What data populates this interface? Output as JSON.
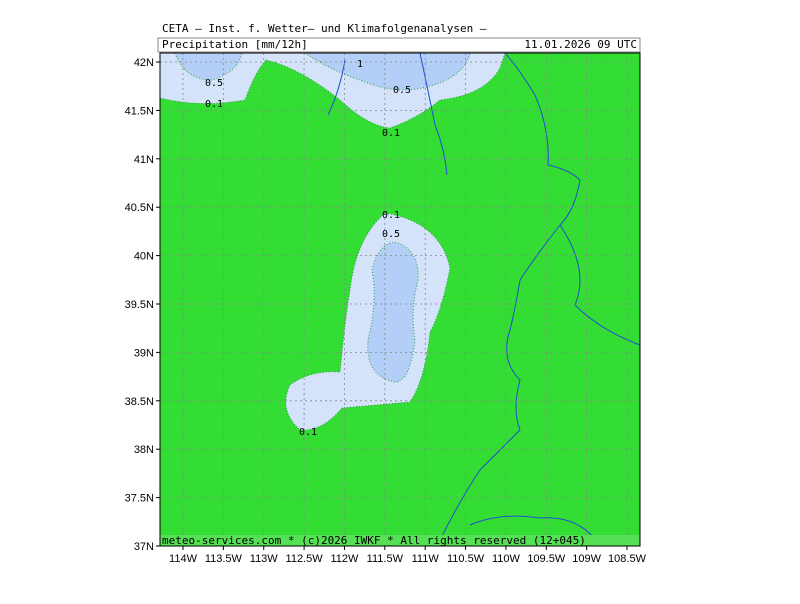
{
  "header": {
    "title": "CETA — Inst. f. Wetter— und Klimafolgenanalysen —",
    "field": "Precipitation [mm/12h]",
    "valid_time": "11.01.2026 09 UTC"
  },
  "footer": "meteo-services.com * (c)2026 IWKF * All rights reserved (12+045)",
  "axes": {
    "lat_ticks": [
      {
        "value": 42,
        "label": "42N"
      },
      {
        "value": 41.5,
        "label": "41.5N"
      },
      {
        "value": 41,
        "label": "41N"
      },
      {
        "value": 40.5,
        "label": "40.5N"
      },
      {
        "value": 40,
        "label": "40N"
      },
      {
        "value": 39.5,
        "label": "39.5N"
      },
      {
        "value": 39,
        "label": "39N"
      },
      {
        "value": 38.5,
        "label": "38.5N"
      },
      {
        "value": 38,
        "label": "38N"
      },
      {
        "value": 37.5,
        "label": "37.5N"
      },
      {
        "value": 37,
        "label": "37N"
      }
    ],
    "lon_ticks": [
      {
        "value": -114,
        "label": "114W"
      },
      {
        "value": -113.5,
        "label": "113.5W"
      },
      {
        "value": -113,
        "label": "113W"
      },
      {
        "value": -112.5,
        "label": "112.5W"
      },
      {
        "value": -112,
        "label": "112W"
      },
      {
        "value": -111.5,
        "label": "111.5W"
      },
      {
        "value": -111,
        "label": "111W"
      },
      {
        "value": -110.5,
        "label": "110.5W"
      },
      {
        "value": -110,
        "label": "110W"
      },
      {
        "value": -109.5,
        "label": "109.5W"
      },
      {
        "value": -109,
        "label": "109W"
      },
      {
        "value": -108.5,
        "label": "108.5W"
      }
    ]
  },
  "contour_labels": [
    "0.5",
    "0.1",
    "1",
    "0.5",
    "0.1",
    "0.1",
    "0.5",
    "0.1"
  ]
}
